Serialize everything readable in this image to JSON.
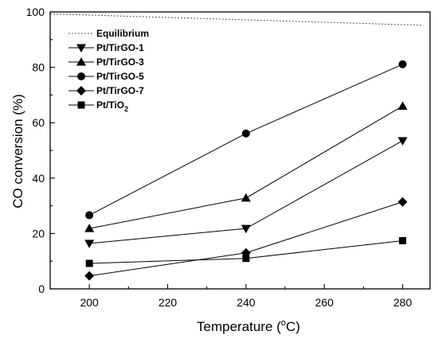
{
  "chart_data": {
    "type": "line",
    "xlabel": "Temperature",
    "xlabel_unit_open": "(",
    "xlabel_unit_sup": "o",
    "xlabel_unit_rest": "C)",
    "ylabel": "CO conversion (%)",
    "xlim": [
      190,
      287
    ],
    "ylim": [
      0,
      100
    ],
    "xticks": [
      200,
      220,
      240,
      260,
      280
    ],
    "yticks": [
      0,
      20,
      40,
      60,
      80,
      100
    ],
    "grid": false,
    "legend_position": "top-left",
    "equilibrium": {
      "name": "Equilibrium",
      "style": "dotted",
      "x": [
        190,
        285
      ],
      "y": [
        99.3,
        95.2
      ]
    },
    "series": [
      {
        "name": "Pt/TirGO-1",
        "marker": "triangle-down",
        "x": [
          200,
          240,
          280
        ],
        "y": [
          16.4,
          21.8,
          53.5
        ]
      },
      {
        "name": "Pt/TirGO-3",
        "marker": "triangle-up",
        "x": [
          200,
          240,
          280
        ],
        "y": [
          21.8,
          32.8,
          66.0
        ]
      },
      {
        "name": "Pt/TirGO-5",
        "marker": "circle",
        "x": [
          200,
          240,
          280
        ],
        "y": [
          26.6,
          56.1,
          81.1
        ]
      },
      {
        "name": "Pt/TirGO-7",
        "marker": "diamond",
        "x": [
          200,
          240,
          280
        ],
        "y": [
          4.7,
          13.0,
          31.4
        ]
      },
      {
        "name": "Pt/TiO",
        "name_subscript": "2",
        "marker": "square",
        "x": [
          200,
          240,
          280
        ],
        "y": [
          9.2,
          11.0,
          17.4
        ]
      }
    ]
  }
}
